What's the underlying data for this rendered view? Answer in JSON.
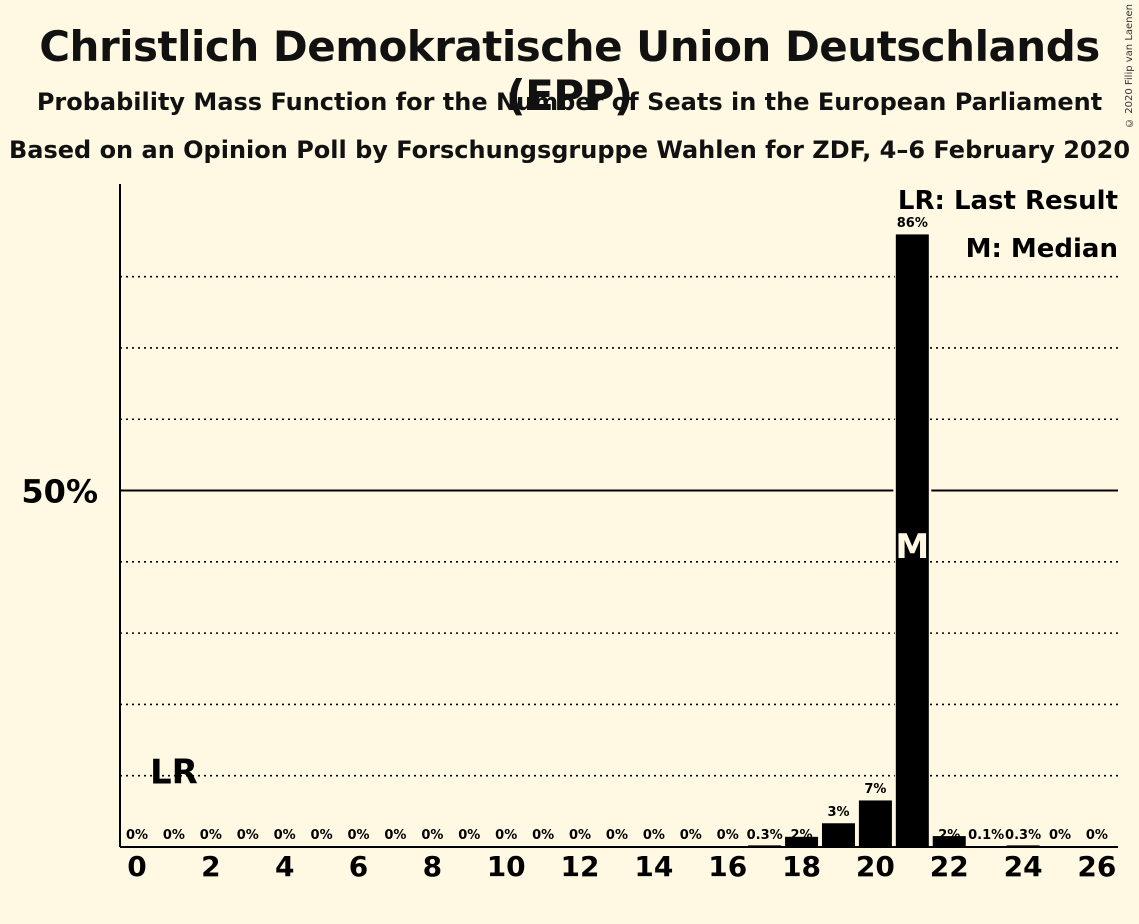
{
  "title": "Christlich Demokratische Union Deutschlands (EPP)",
  "subtitle1": "Probability Mass Function for the Number of Seats in the European Parliament",
  "subtitle2": "Based on an Opinion Poll by Forschungsgruppe Wahlen for ZDF, 4–6 February 2020",
  "copyright": "© 2020 Filip van Laenen",
  "legend": {
    "last_result": "LR: Last Result",
    "median": "M: Median"
  },
  "chart_data": {
    "type": "bar",
    "ylim": [
      0,
      93
    ],
    "y_reference": 50,
    "y_reference_label": "50%",
    "y_gridlines": [
      10,
      20,
      30,
      40,
      60,
      70,
      80
    ],
    "x_tick_values": [
      0,
      2,
      4,
      6,
      8,
      10,
      12,
      14,
      16,
      18,
      20,
      22,
      24,
      26
    ],
    "x_tick_labels": [
      "0",
      "2",
      "4",
      "6",
      "8",
      "10",
      "12",
      "14",
      "16",
      "18",
      "20",
      "22",
      "24",
      "26"
    ],
    "seats": [
      0,
      1,
      2,
      3,
      4,
      5,
      6,
      7,
      8,
      9,
      10,
      11,
      12,
      13,
      14,
      15,
      16,
      17,
      18,
      19,
      20,
      21,
      22,
      23,
      24,
      25,
      26
    ],
    "values": [
      0,
      0,
      0,
      0,
      0,
      0,
      0,
      0,
      0,
      0,
      0,
      0,
      0,
      0,
      0,
      0,
      0,
      0.3,
      1.5,
      3.4,
      6.6,
      86,
      1.6,
      0.1,
      0.3,
      0,
      0
    ],
    "labels": [
      "0%",
      "0%",
      "0%",
      "0%",
      "0%",
      "0%",
      "0%",
      "0%",
      "0%",
      "0%",
      "0%",
      "0%",
      "0%",
      "0%",
      "0%",
      "0%",
      "0%",
      "0.3%",
      "2%",
      "3%",
      "7%",
      "86%",
      "2%",
      "0.1%",
      "0.3%",
      "0%",
      "0%"
    ],
    "last_result_seat": 1,
    "last_result_label": "LR",
    "last_result_level": 10,
    "median_seat": 21,
    "median_label": "M",
    "bar_color": "#000000",
    "background_color": "#fff9e3"
  }
}
